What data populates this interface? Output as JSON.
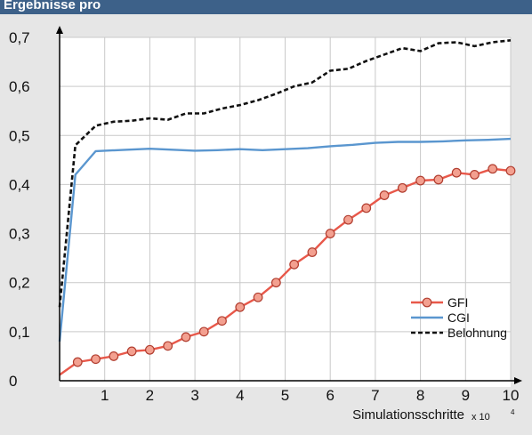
{
  "header": {
    "title": "Ergebnisse pro"
  },
  "chart_data": {
    "type": "line",
    "x_axis_label": "Simulationsschritte",
    "x_scale_label": "x 10",
    "x_scale_exponent": "4",
    "xlim": [
      0,
      10
    ],
    "ylim": [
      0,
      0.7
    ],
    "x_ticks": [
      1,
      2,
      3,
      4,
      5,
      6,
      7,
      8,
      9,
      10
    ],
    "x_tick_labels": [
      "1",
      "2",
      "3",
      "4",
      "5",
      "6",
      "7",
      "8",
      "9",
      "10"
    ],
    "y_ticks": [
      0,
      0.1,
      0.2,
      0.3,
      0.4,
      0.5,
      0.6,
      0.7
    ],
    "y_tick_labels": [
      "0",
      "0,1",
      "0,2",
      "0,3",
      "0,4",
      "0,5",
      "0,6",
      "0,7"
    ],
    "legend_position": "lower-right",
    "series": [
      {
        "name": "GFI",
        "color": "#e8584a",
        "marker": "circle",
        "x": [
          0,
          0.4,
          0.8,
          1.2,
          1.6,
          2.0,
          2.4,
          2.8,
          3.2,
          3.6,
          4.0,
          4.4,
          4.8,
          5.2,
          5.6,
          6.0,
          6.4,
          6.8,
          7.2,
          7.6,
          8.0,
          8.4,
          8.8,
          9.2,
          9.6,
          10.0
        ],
        "values": [
          0.012,
          0.038,
          0.044,
          0.05,
          0.06,
          0.063,
          0.071,
          0.089,
          0.1,
          0.122,
          0.15,
          0.17,
          0.2,
          0.237,
          0.262,
          0.3,
          0.328,
          0.352,
          0.378,
          0.393,
          0.408,
          0.41,
          0.424,
          0.42,
          0.432,
          0.428
        ],
        "markers_from_index": 1
      },
      {
        "name": "CGI",
        "color": "#5a96cf",
        "x": [
          0,
          0.35,
          0.8,
          1.5,
          2.0,
          2.5,
          3.0,
          3.5,
          4.0,
          4.5,
          5.0,
          5.5,
          6.0,
          6.5,
          7.0,
          7.5,
          8.0,
          8.5,
          9.0,
          9.5,
          10.0
        ],
        "values": [
          0.08,
          0.42,
          0.468,
          0.471,
          0.473,
          0.471,
          0.469,
          0.47,
          0.472,
          0.47,
          0.472,
          0.474,
          0.478,
          0.481,
          0.485,
          0.487,
          0.487,
          0.488,
          0.49,
          0.491,
          0.493
        ]
      },
      {
        "name": "Belohnung",
        "color": "#111111",
        "dashed": true,
        "x": [
          0,
          0.35,
          0.8,
          1.2,
          1.6,
          2.0,
          2.4,
          2.8,
          3.2,
          3.6,
          4.0,
          4.4,
          4.8,
          5.2,
          5.6,
          6.0,
          6.4,
          6.8,
          7.2,
          7.6,
          8.0,
          8.4,
          8.8,
          9.2,
          9.6,
          10.0
        ],
        "values": [
          0.15,
          0.48,
          0.52,
          0.528,
          0.53,
          0.535,
          0.532,
          0.545,
          0.545,
          0.555,
          0.562,
          0.572,
          0.585,
          0.6,
          0.608,
          0.632,
          0.636,
          0.652,
          0.665,
          0.678,
          0.672,
          0.688,
          0.69,
          0.682,
          0.69,
          0.694
        ]
      }
    ]
  }
}
